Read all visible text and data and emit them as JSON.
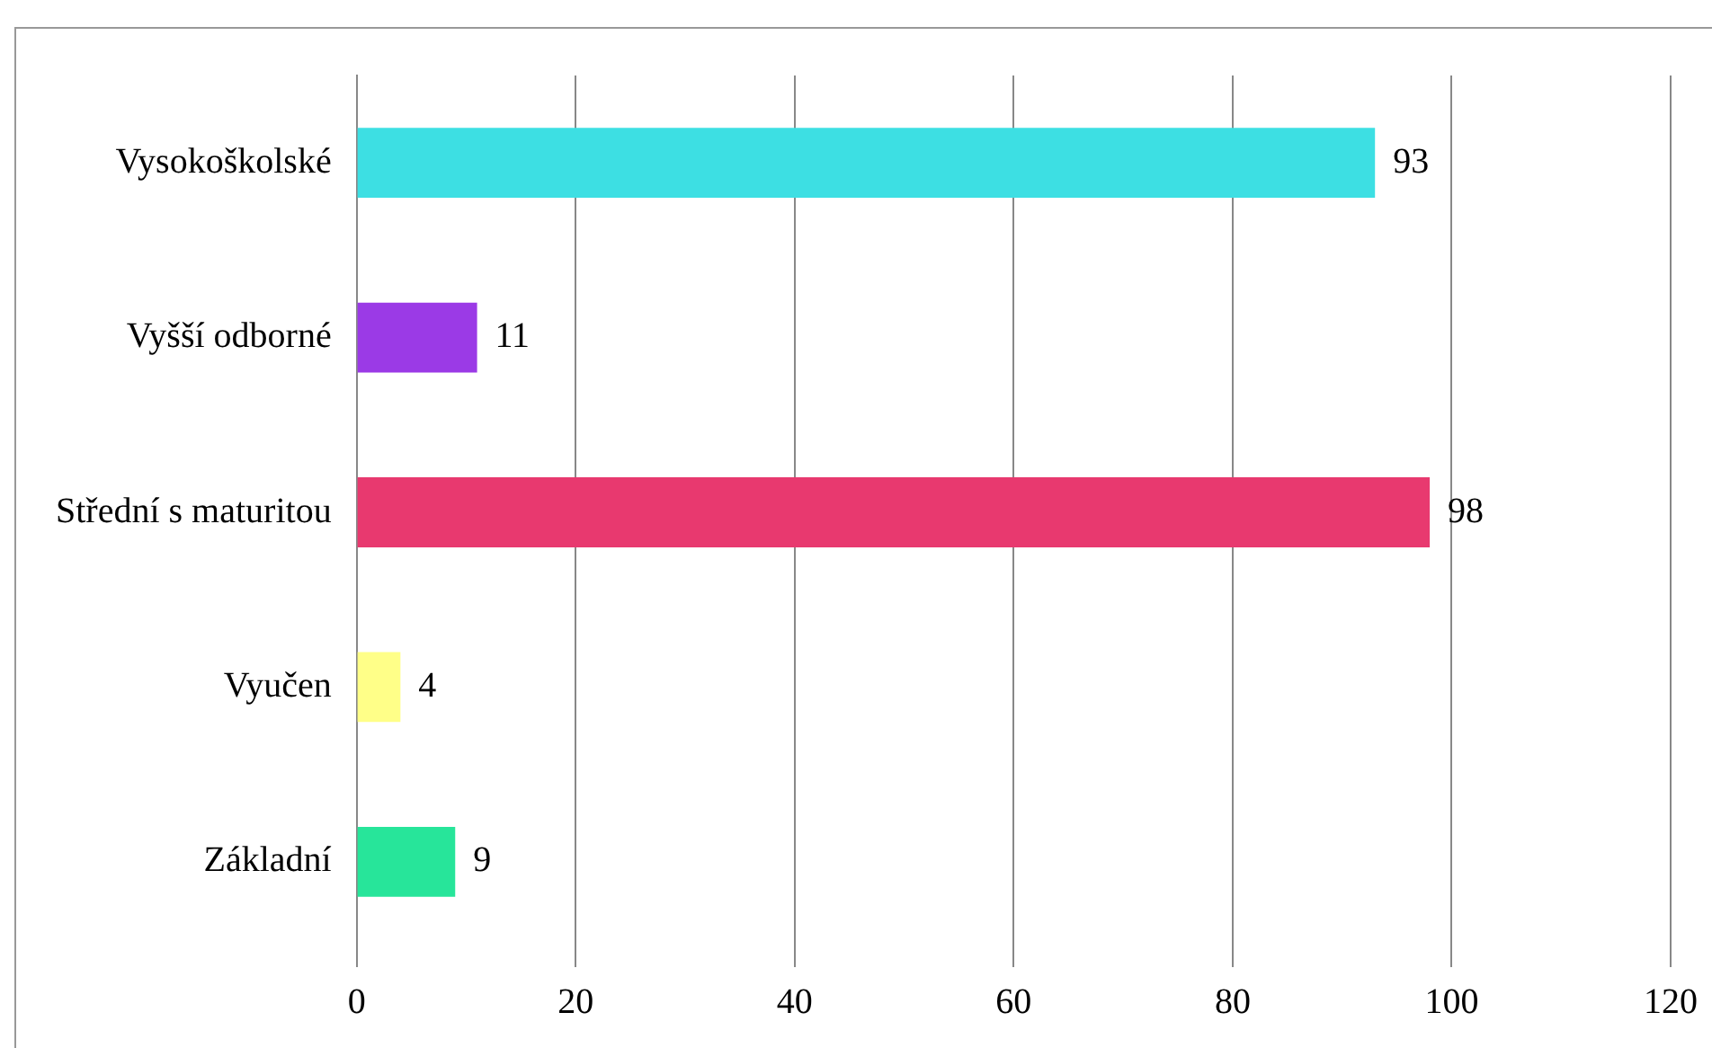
{
  "chart_data": {
    "type": "bar",
    "orientation": "horizontal",
    "categories": [
      "Vysokoškolské",
      "Vyšší odborné",
      "Střední s maturitou",
      "Vyučen",
      "Základní"
    ],
    "values": [
      93,
      11,
      98,
      4,
      9
    ],
    "colors": [
      "#3ddfe3",
      "#9b3ae6",
      "#e8396f",
      "#ffff88",
      "#27e59a"
    ],
    "xlim": [
      0,
      120
    ],
    "xticks": [
      0,
      20,
      40,
      60,
      80,
      100,
      120
    ],
    "grid": "x",
    "data_labels": true,
    "legend": false
  }
}
